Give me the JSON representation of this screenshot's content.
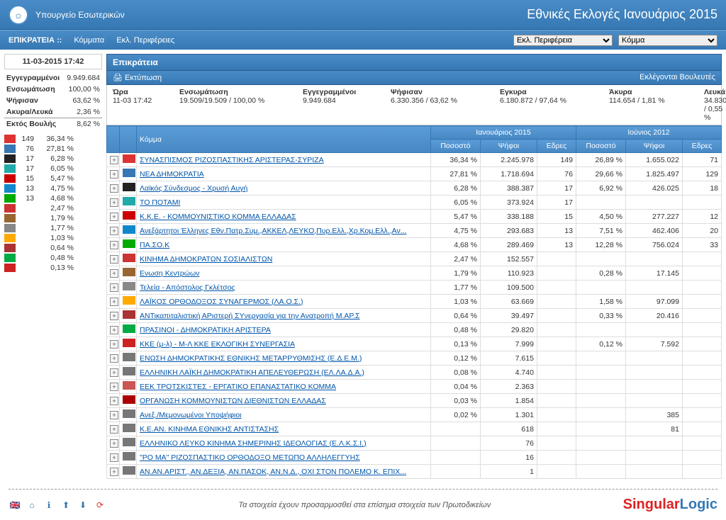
{
  "header": {
    "ministry": "Υπουργείο Εσωτερικών",
    "title": "Εθνικές Εκλογές Ιανουάριος 2015"
  },
  "nav": {
    "epikrateia": "ΕΠΙΚΡΑΤΕΙΑ ::",
    "kommata": "Κόμματα",
    "ekl_perifereies": "Εκλ. Περιφέρειες",
    "sel_perif": "Εκλ. Περιφέρεια",
    "sel_komma": "Κόμμα"
  },
  "timestamp": "11-03-2015 17:42",
  "stats": [
    {
      "label": "Εγγεγραμμένοι",
      "value": "9.949.684"
    },
    {
      "label": "Ενσωμάτωση",
      "value": "100,00 %"
    },
    {
      "label": "Ψήφισαν",
      "value": "63,62 %"
    },
    {
      "label": "Ακυρα/Λευκά",
      "value": "2,36 %"
    }
  ],
  "ektos": {
    "label": "Εκτός Βουλής",
    "value": "8,62 %"
  },
  "mini": [
    {
      "seats": "149",
      "pct": "36,34 %",
      "color": "#d33"
    },
    {
      "seats": "76",
      "pct": "27,81 %",
      "color": "#3578b3"
    },
    {
      "seats": "17",
      "pct": "6,28 %",
      "color": "#222"
    },
    {
      "seats": "17",
      "pct": "6,05 %",
      "color": "#2aa"
    },
    {
      "seats": "15",
      "pct": "5,47 %",
      "color": "#c00"
    },
    {
      "seats": "13",
      "pct": "4,75 %",
      "color": "#18c"
    },
    {
      "seats": "13",
      "pct": "4,68 %",
      "color": "#0a0"
    },
    {
      "seats": "",
      "pct": "2,47 %",
      "color": "#c33"
    },
    {
      "seats": "",
      "pct": "1,79 %",
      "color": "#963"
    },
    {
      "seats": "",
      "pct": "1,77 %",
      "color": "#888"
    },
    {
      "seats": "",
      "pct": "1,03 %",
      "color": "#fa0"
    },
    {
      "seats": "",
      "pct": "0,64 %",
      "color": "#a33"
    },
    {
      "seats": "",
      "pct": "0,48 %",
      "color": "#0a4"
    },
    {
      "seats": "",
      "pct": "0,13 %",
      "color": "#c22"
    }
  ],
  "panel_title": "Επικράτεια",
  "print_label": "Εκτύπωση",
  "eklegontai": "Εκλέγονται Βουλευτές",
  "summary": {
    "ora_l": "Ώρα",
    "ora": "11-03 17:42",
    "ens_l": "Ενσωμάτωση",
    "ens": "19.509/19.509 / 100,00 %",
    "egg_l": "Εγγεγραμμένοι",
    "egg": "9.949.684",
    "psi_l": "Ψήφισαν",
    "psi": "6.330.356 / 63,62 %",
    "egy_l": "Εγκυρα",
    "egy": "6.180.872 / 97,64 %",
    "aky_l": "Άκυρα",
    "aky": "114.654 / 1,81 %",
    "leu_l": "Λευκά",
    "leu": "34.830 / 0,55 %"
  },
  "cols": {
    "komma": "Κόμμα",
    "pct": "Ποσοστό",
    "votes": "Ψήφοι",
    "seats": "Εδρες",
    "period1": "Ιανουάριος 2015",
    "period2": "Ιούνιος 2012"
  },
  "rows": [
    {
      "c": "#d33",
      "n": "ΣΥΝΑΣΠΙΣΜΟΣ ΡΙΖΟΣΠΑΣΤΙΚΗΣ ΑΡΙΣΤΕΡΑΣ-ΣΥΡΙΖΑ",
      "p1": "36,34 %",
      "v1": "2.245.978",
      "s1": "149",
      "p2": "26,89 %",
      "v2": "1.655.022",
      "s2": "71"
    },
    {
      "c": "#3578b3",
      "n": "ΝΕΑ ΔΗΜΟΚΡΑΤΙΑ",
      "p1": "27,81 %",
      "v1": "1.718.694",
      "s1": "76",
      "p2": "29,66 %",
      "v2": "1.825.497",
      "s2": "129"
    },
    {
      "c": "#222",
      "n": "Λαϊκός Σύνδεσμος - Χρυσή Αυγή",
      "p1": "6,28 %",
      "v1": "388.387",
      "s1": "17",
      "p2": "6,92 %",
      "v2": "426.025",
      "s2": "18"
    },
    {
      "c": "#2aa",
      "n": "ΤΟ ΠΟΤΑΜΙ",
      "p1": "6,05 %",
      "v1": "373.924",
      "s1": "17",
      "p2": "",
      "v2": "",
      "s2": ""
    },
    {
      "c": "#c00",
      "n": "Κ.Κ.Ε. - ΚΟΜΜΟΥΝΙΣΤΙΚΟ ΚΟΜΜΑ ΕΛΛΑΔΑΣ",
      "p1": "5,47 %",
      "v1": "338.188",
      "s1": "15",
      "p2": "4,50 %",
      "v2": "277.227",
      "s2": "12"
    },
    {
      "c": "#18c",
      "n": "Ανεξάρτητοι Έλληνες Εθν.Πατρ.Συμ.,ΑΚΚΕΛ,ΛΕΥΚΟ,Πυρ.Ελλ.,Χρ.Κομ.Ελλ.,Αν...",
      "p1": "4,75 %",
      "v1": "293.683",
      "s1": "13",
      "p2": "7,51 %",
      "v2": "462.406",
      "s2": "20"
    },
    {
      "c": "#0a0",
      "n": "ΠΑ.ΣΟ.Κ",
      "p1": "4,68 %",
      "v1": "289.469",
      "s1": "13",
      "p2": "12,28 %",
      "v2": "756.024",
      "s2": "33"
    },
    {
      "c": "#c33",
      "n": "ΚΙΝΗΜΑ ΔΗΜΟΚΡΑΤΩΝ ΣΟΣΙΑΛΙΣΤΩΝ",
      "p1": "2,47 %",
      "v1": "152.557",
      "s1": "",
      "p2": "",
      "v2": "",
      "s2": ""
    },
    {
      "c": "#963",
      "n": "Ενωση Κεντρώων",
      "p1": "1,79 %",
      "v1": "110.923",
      "s1": "",
      "p2": "0,28 %",
      "v2": "17.145",
      "s2": ""
    },
    {
      "c": "#888",
      "n": "Τελεία - Απόστολος Γκλέτσος",
      "p1": "1,77 %",
      "v1": "109.500",
      "s1": "",
      "p2": "",
      "v2": "",
      "s2": ""
    },
    {
      "c": "#fa0",
      "n": "ΛΑΪΚΟΣ ΟΡΘΟΔΟΞΟΣ ΣΥΝΑΓΕΡΜΟΣ (ΛΑ.Ο.Σ.)",
      "p1": "1,03 %",
      "v1": "63.669",
      "s1": "",
      "p2": "1,58 %",
      "v2": "97.099",
      "s2": ""
    },
    {
      "c": "#a33",
      "n": "ΑΝΤικαπιταλιστική ΑΡιστερή ΣΥνεργασία για την Ανατροπή Μ.ΑΡ.Σ",
      "p1": "0,64 %",
      "v1": "39.497",
      "s1": "",
      "p2": "0,33 %",
      "v2": "20.416",
      "s2": ""
    },
    {
      "c": "#0a4",
      "n": "ΠΡΑΣΙΝΟΙ - ΔΗΜΟΚΡΑΤΙΚΗ ΑΡΙΣΤΕΡΑ",
      "p1": "0,48 %",
      "v1": "29.820",
      "s1": "",
      "p2": "",
      "v2": "",
      "s2": ""
    },
    {
      "c": "#c22",
      "n": "ΚΚΕ (μ-λ) - Μ-Λ ΚΚΕ ΕΚΛΟΓΙΚΗ ΣΥΝΕΡΓΑΣΙΑ",
      "p1": "0,13 %",
      "v1": "7.999",
      "s1": "",
      "p2": "0,12 %",
      "v2": "7.592",
      "s2": ""
    },
    {
      "c": "#777",
      "n": "ΕΝΩΣΗ ΔΗΜΟΚΡΑΤΙΚΗΣ ΕΘΝΙΚΗΣ ΜΕΤΑΡΡΥΘΜΙΣΗΣ (Ε.Δ.Ε.Μ.)",
      "p1": "0,12 %",
      "v1": "7.615",
      "s1": "",
      "p2": "",
      "v2": "",
      "s2": ""
    },
    {
      "c": "#777",
      "n": "ΕΛΛΗΝΙΚΗ ΛΑΪΚΗ ΔΗΜΟΚΡΑΤΙΚΗ ΑΠΕΛΕΥΘΕΡΩΣΗ (ΕΛ.ΛΑ.Δ.Α.)",
      "p1": "0,08 %",
      "v1": "4.740",
      "s1": "",
      "p2": "",
      "v2": "",
      "s2": ""
    },
    {
      "c": "#c55",
      "n": "ΕΕΚ ΤΡΟΤΣΚΙΣΤΕΣ - ΕΡΓΑΤΙΚΟ ΕΠΑΝΑΣΤΑΤΙΚΟ ΚΟΜΜΑ",
      "p1": "0,04 %",
      "v1": "2.363",
      "s1": "",
      "p2": "",
      "v2": "",
      "s2": ""
    },
    {
      "c": "#a00",
      "n": "ΟΡΓΑΝΩΣΗ ΚΟΜΜΟΥΝΙΣΤΩΝ ΔΙΕΘΝΙΣΤΩΝ ΕΛΛΑΔΑΣ",
      "p1": "0,03 %",
      "v1": "1.854",
      "s1": "",
      "p2": "",
      "v2": "",
      "s2": ""
    },
    {
      "c": "#777",
      "n": "Ανεξ./Μεμονωμένοι Υποψήφιοι",
      "p1": "0,02 %",
      "v1": "1.301",
      "s1": "",
      "p2": "",
      "v2": "385",
      "s2": ""
    },
    {
      "c": "#777",
      "n": "Κ.Ε.ΑΝ. ΚΙΝΗΜΑ ΕΘΝΙΚΗΣ ΑΝΤΙΣΤΑΣΗΣ",
      "p1": "",
      "v1": "618",
      "s1": "",
      "p2": "",
      "v2": "81",
      "s2": ""
    },
    {
      "c": "#777",
      "n": "ΕΛΛΗΝΙΚΟ ΛΕΥΚΟ ΚΙΝΗΜΑ ΣΗΜΕΡΙΝΗΣ ΙΔΕΟΛΟΓΙΑΣ (Ε.Λ.Κ.Σ.Ι.)",
      "p1": "",
      "v1": "76",
      "s1": "",
      "p2": "",
      "v2": "",
      "s2": ""
    },
    {
      "c": "#777",
      "n": "\"ΡΟ ΜΑ\" ΡΙΖΟΣΠΑΣΤΙΚΟ ΟΡΘΟΔΟΞΟ ΜΕΤΩΠΟ ΑΛΛΗΛΕΓΓΥΗΣ",
      "p1": "",
      "v1": "16",
      "s1": "",
      "p2": "",
      "v2": "",
      "s2": ""
    },
    {
      "c": "#777",
      "n": "ΑΝ.ΑΝ.ΑΡΙΣΤ., ΑΝ.ΔΕΞΙΑ, ΑΝ.ΠΑΣΟΚ, ΑΝ.Ν.Δ., ΟΧΙ ΣΤΟΝ ΠΟΛΕΜΟ Κ. ΕΠΙΧ...",
      "p1": "",
      "v1": "1",
      "s1": "",
      "p2": "",
      "v2": "",
      "s2": ""
    }
  ],
  "footer_text": "Τα στοιχεία έχουν προσαρμοσθεί στα επίσημα στοιχεία των Πρωτοδικείων",
  "footer_logo": {
    "s": "Singular",
    "l": "Logic"
  }
}
